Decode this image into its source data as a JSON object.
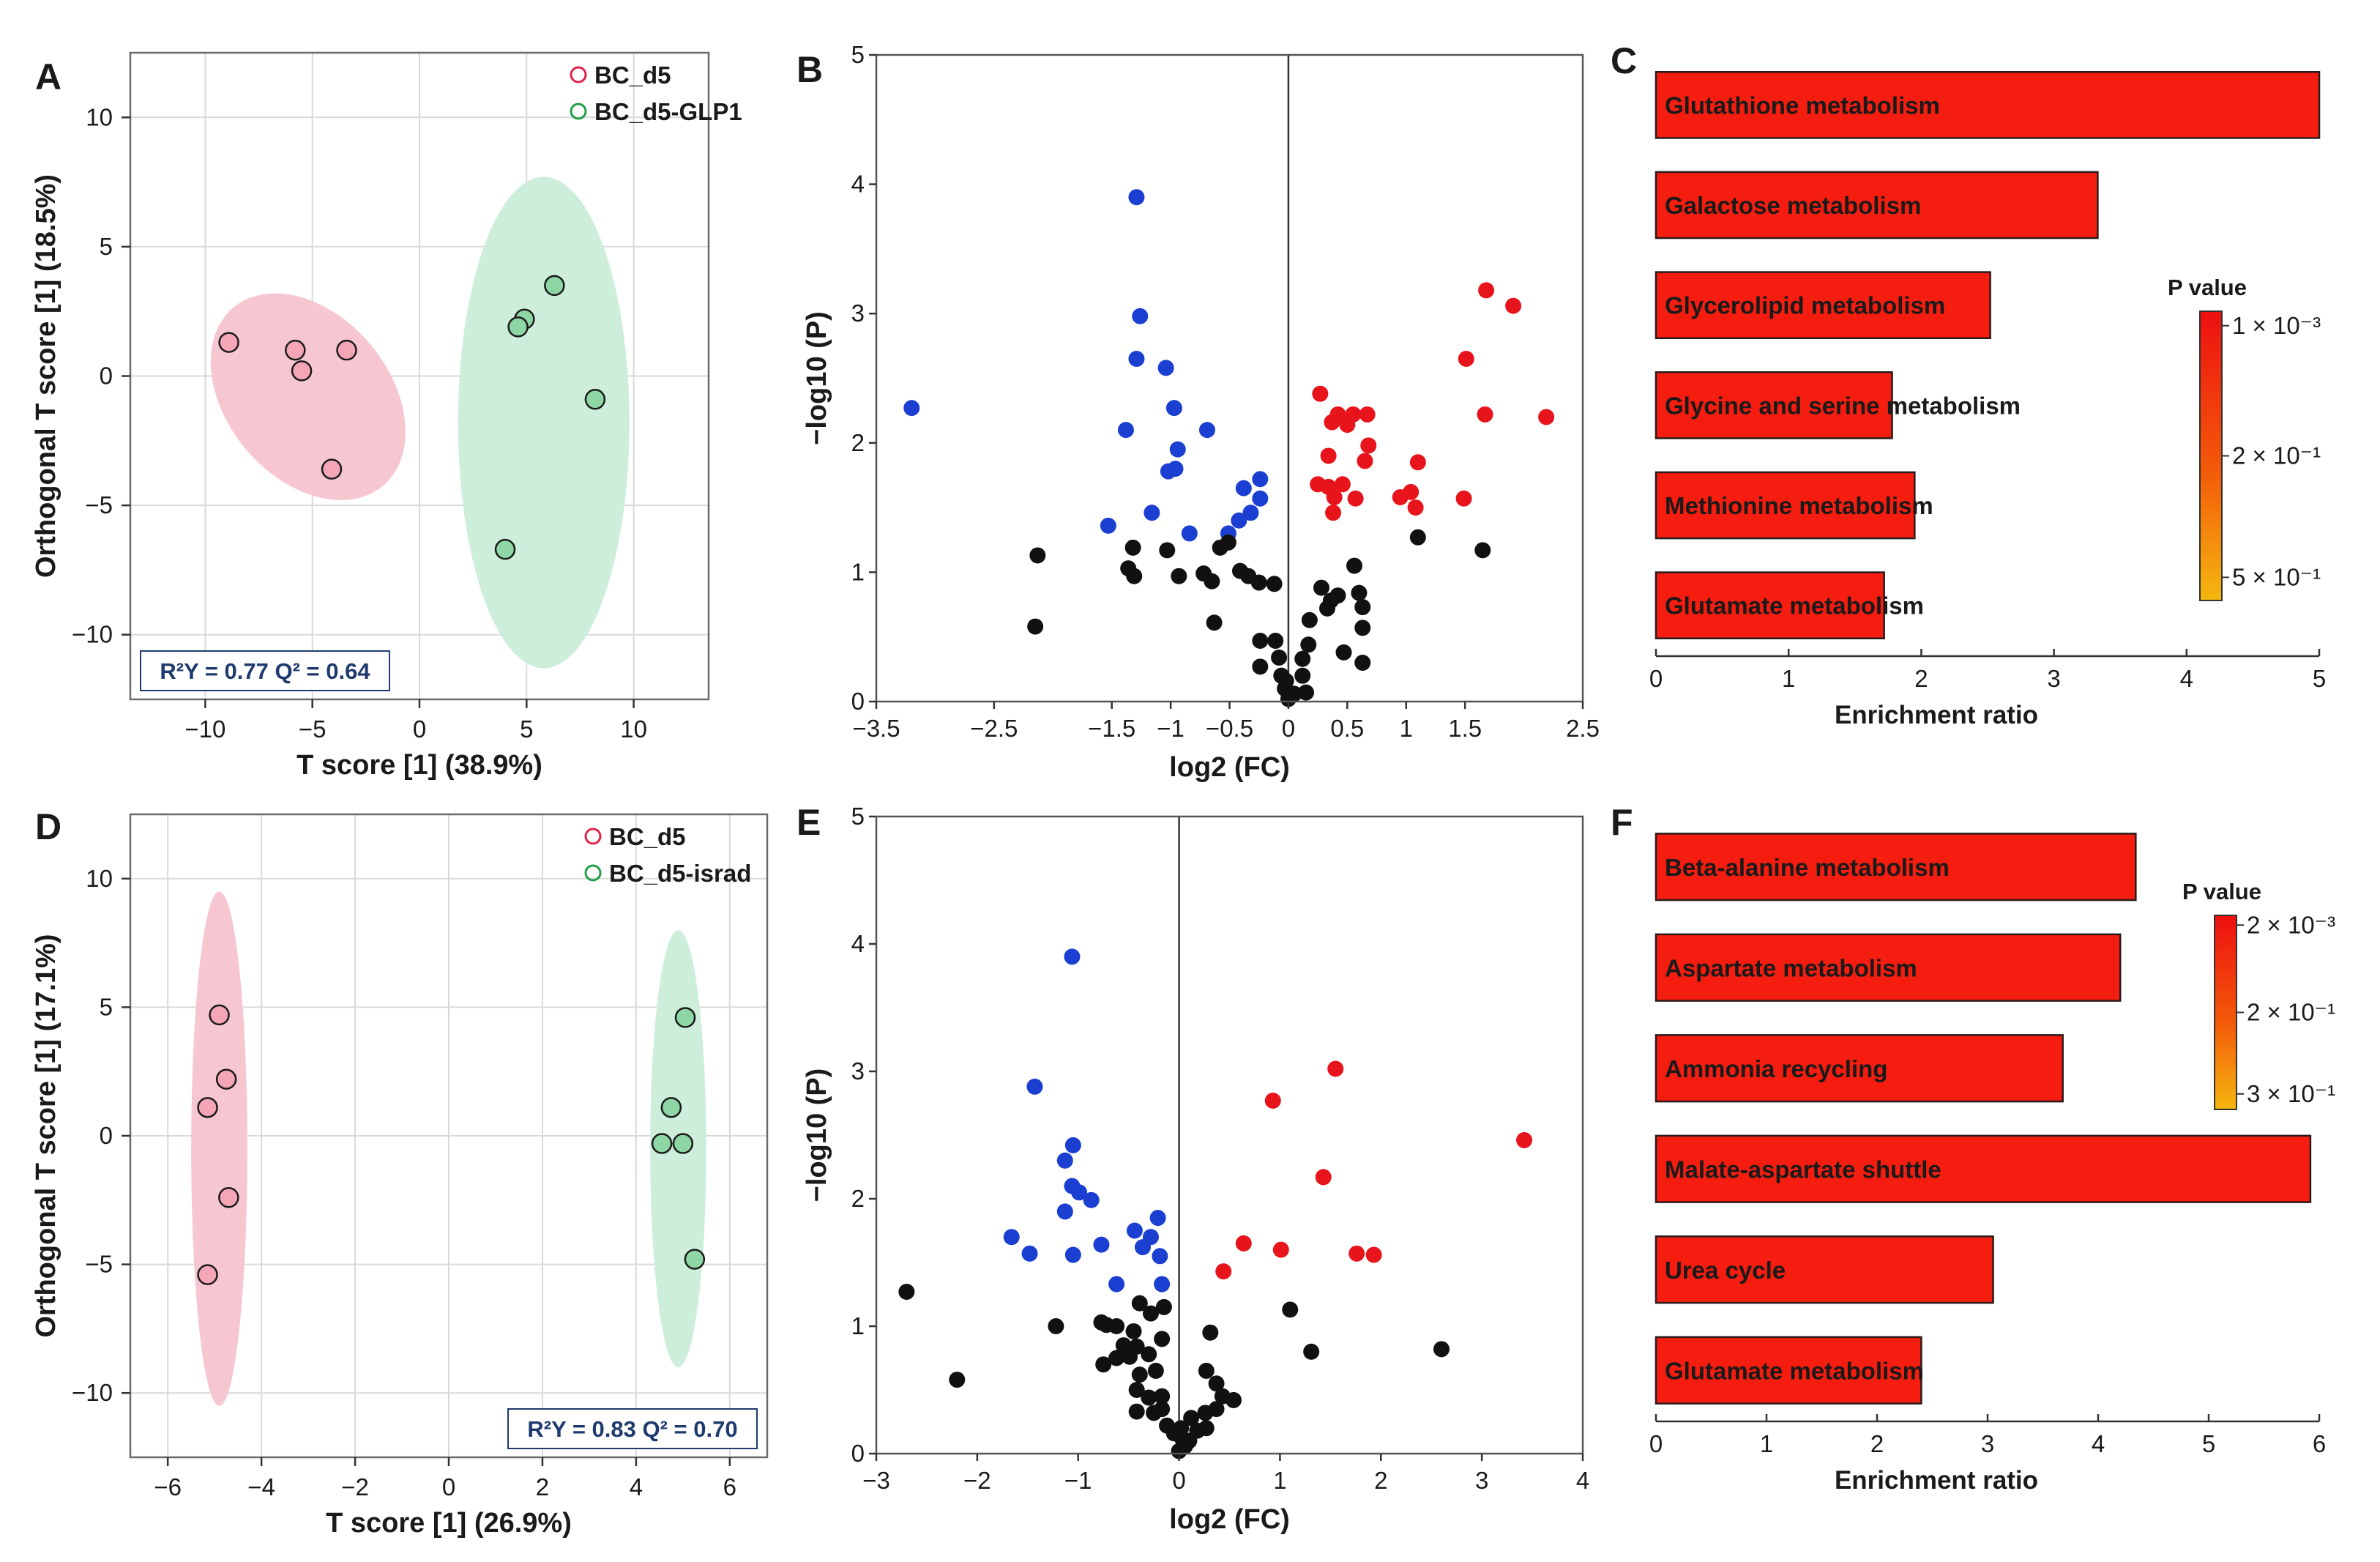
{
  "figure": {
    "panels": [
      {
        "letter": "A"
      },
      {
        "letter": "B"
      },
      {
        "letter": "C"
      },
      {
        "letter": "D"
      },
      {
        "letter": "E"
      },
      {
        "letter": "F"
      }
    ]
  },
  "colors": {
    "group1_fill": "#f4a6b6",
    "group1_ellipse": "#f7c7d1",
    "group1_ring": "#e0234a",
    "group2_fill": "#8fd6a5",
    "group2_ellipse": "#cdeedb",
    "group2_ring": "#1fa048",
    "up": "#e8141c",
    "down": "#1a3fd1",
    "ns": "#111111",
    "bar": "#f51d10",
    "bar_edge": "#2b1a1a",
    "grad_top": "#ee1010",
    "grad_mid": "#f35a0a",
    "grad_bottom": "#f5b70f",
    "stat_text": "#1f3a6e"
  },
  "chart_data": [
    {
      "panel": "A",
      "type": "scatter",
      "xlabel": "T score [1] (38.9%)",
      "ylabel": "Orthogonal T score [1] (18.5%)",
      "xlim": [
        -13.5,
        13.5
      ],
      "ylim": [
        -12.5,
        12.5
      ],
      "xticks": [
        -10,
        -5,
        0,
        5,
        10
      ],
      "yticks": [
        -10,
        -5,
        0,
        5,
        10
      ],
      "grid": true,
      "legend": [
        {
          "name": "BC_d5"
        },
        {
          "name": "BC_d5-GLP1"
        }
      ],
      "stats": "R²Y = 0.77 Q² = 0.64",
      "series": [
        {
          "name": "BC_d5",
          "points": [
            [
              -8.9,
              1.3
            ],
            [
              -5.8,
              1.0
            ],
            [
              -5.5,
              0.2
            ],
            [
              -3.4,
              1.0
            ],
            [
              -4.1,
              -3.6
            ]
          ],
          "ellipse": {
            "cx": -5.2,
            "cy": -0.8,
            "rx": 3.8,
            "ry": 4.5,
            "angle_deg": 40
          }
        },
        {
          "name": "BC_d5-GLP1",
          "points": [
            [
              6.3,
              3.5
            ],
            [
              4.9,
              2.2
            ],
            [
              4.6,
              1.9
            ],
            [
              8.2,
              -0.9
            ],
            [
              4.0,
              -6.7
            ]
          ],
          "ellipse": {
            "cx": 5.8,
            "cy": -1.8,
            "rx": 4.0,
            "ry": 9.5,
            "angle_deg": 0
          }
        }
      ]
    },
    {
      "panel": "B",
      "type": "scatter",
      "subtype": "volcano",
      "xlabel": "log2 (FC)",
      "ylabel": "−log10 (P)",
      "xlim": [
        -3.5,
        2.5
      ],
      "ylim": [
        0,
        5
      ],
      "xticks": [
        -3.5,
        -2.5,
        -1.5,
        -1,
        -0.5,
        0,
        0.5,
        1,
        1.5,
        2.5
      ],
      "xtick_labels": [
        "−3.5",
        "−2.5",
        "−1.5",
        "−1",
        "−0.5",
        "0",
        "0.5",
        "1",
        "1.5",
        "2.5"
      ],
      "yticks": [
        0,
        1,
        2,
        3,
        4,
        5
      ],
      "series": [
        {
          "name": "down",
          "points": [
            [
              -3.2,
              2.27
            ],
            [
              -1.29,
              3.9
            ],
            [
              -1.26,
              2.98
            ],
            [
              -1.29,
              2.65
            ],
            [
              -1.04,
              2.58
            ],
            [
              -0.97,
              2.27
            ],
            [
              -1.38,
              2.1
            ],
            [
              -0.94,
              1.95
            ],
            [
              -0.96,
              1.8
            ],
            [
              -1.02,
              1.78
            ],
            [
              -0.69,
              2.1
            ],
            [
              -0.24,
              1.72
            ],
            [
              -0.24,
              1.57
            ],
            [
              -0.38,
              1.65
            ],
            [
              -0.32,
              1.46
            ],
            [
              -0.42,
              1.4
            ],
            [
              -1.16,
              1.46
            ],
            [
              -1.53,
              1.36
            ],
            [
              -0.51,
              1.3
            ],
            [
              -0.84,
              1.3
            ]
          ]
        },
        {
          "name": "up",
          "points": [
            [
              1.68,
              3.18
            ],
            [
              1.91,
              3.06
            ],
            [
              1.51,
              2.65
            ],
            [
              0.27,
              2.38
            ],
            [
              0.42,
              2.22
            ],
            [
              0.55,
              2.22
            ],
            [
              0.67,
              2.22
            ],
            [
              0.37,
              2.16
            ],
            [
              0.5,
              2.14
            ],
            [
              0.68,
              1.98
            ],
            [
              1.67,
              2.22
            ],
            [
              2.19,
              2.2
            ],
            [
              0.34,
              1.9
            ],
            [
              0.65,
              1.86
            ],
            [
              1.1,
              1.85
            ],
            [
              0.25,
              1.68
            ],
            [
              0.34,
              1.66
            ],
            [
              0.46,
              1.68
            ],
            [
              0.39,
              1.58
            ],
            [
              0.57,
              1.57
            ],
            [
              0.95,
              1.58
            ],
            [
              1.04,
              1.62
            ],
            [
              1.08,
              1.5
            ],
            [
              1.49,
              1.57
            ],
            [
              0.38,
              1.46
            ]
          ]
        },
        {
          "name": "ns",
          "points": [
            [
              -2.13,
              1.13
            ],
            [
              -2.15,
              0.58
            ],
            [
              -1.32,
              1.19
            ],
            [
              -1.36,
              1.03
            ],
            [
              -1.31,
              0.97
            ],
            [
              -1.03,
              1.17
            ],
            [
              -0.93,
              0.97
            ],
            [
              -0.72,
              0.99
            ],
            [
              -0.58,
              1.19
            ],
            [
              -0.51,
              1.23
            ],
            [
              -0.65,
              0.93
            ],
            [
              -0.41,
              1.01
            ],
            [
              -0.34,
              0.97
            ],
            [
              -0.25,
              0.92
            ],
            [
              -0.12,
              0.91
            ],
            [
              -0.63,
              0.61
            ],
            [
              -0.24,
              0.47
            ],
            [
              -0.11,
              0.47
            ],
            [
              -0.08,
              0.34
            ],
            [
              -0.24,
              0.27
            ],
            [
              -0.06,
              0.2
            ],
            [
              -0.02,
              0.16
            ],
            [
              0.05,
              0.06
            ],
            [
              0.0,
              0.02
            ],
            [
              -0.03,
              0.1
            ],
            [
              0.12,
              0.2
            ],
            [
              0.17,
              0.44
            ],
            [
              0.12,
              0.33
            ],
            [
              0.15,
              0.07
            ],
            [
              0.18,
              0.63
            ],
            [
              0.28,
              0.88
            ],
            [
              0.33,
              0.72
            ],
            [
              0.36,
              0.78
            ],
            [
              0.42,
              0.82
            ],
            [
              0.56,
              1.05
            ],
            [
              0.6,
              0.84
            ],
            [
              0.63,
              0.73
            ],
            [
              0.63,
              0.57
            ],
            [
              0.47,
              0.38
            ],
            [
              0.63,
              0.3
            ],
            [
              1.1,
              1.27
            ],
            [
              1.65,
              1.17
            ]
          ]
        }
      ]
    },
    {
      "panel": "C",
      "type": "bar",
      "orientation": "horizontal",
      "xlabel": "Enrichment ratio",
      "xlim": [
        0,
        5
      ],
      "xticks": [
        0,
        1,
        2,
        3,
        4,
        5
      ],
      "categories": [
        "Glutathione metabolism",
        "Galactose metabolism",
        "Glycerolipid metabolism",
        "Glycine and serine metabolism",
        "Methionine metabolism",
        "Glutamate metabolism"
      ],
      "values": [
        5.0,
        3.33,
        2.52,
        1.78,
        1.95,
        1.72
      ],
      "colorbar": {
        "title": "P value",
        "labels": [
          "1 × 10⁻³",
          "2 × 10⁻¹",
          "5 × 10⁻¹"
        ]
      }
    },
    {
      "panel": "D",
      "type": "scatter",
      "xlabel": "T score [1] (26.9%)",
      "ylabel": "Orthogonal T score [1] (17.1%)",
      "xlim": [
        -6.8,
        6.8
      ],
      "ylim": [
        -12.5,
        12.5
      ],
      "xticks": [
        -6,
        -4,
        -2,
        0,
        2,
        4,
        6
      ],
      "yticks": [
        -10,
        -5,
        0,
        5,
        10
      ],
      "grid": true,
      "legend": [
        {
          "name": "BC_d5"
        },
        {
          "name": "BC_d5-israd"
        }
      ],
      "stats": "R²Y = 0.83 Q² = 0.70",
      "series": [
        {
          "name": "BC_d5",
          "points": [
            [
              -4.9,
              4.7
            ],
            [
              -4.75,
              2.2
            ],
            [
              -5.15,
              1.1
            ],
            [
              -4.7,
              -2.4
            ],
            [
              -5.15,
              -5.4
            ]
          ],
          "ellipse": {
            "cx": -4.9,
            "cy": -0.5,
            "rx": 0.6,
            "ry": 10.0,
            "angle_deg": 0
          }
        },
        {
          "name": "BC_d5-israd",
          "points": [
            [
              5.05,
              4.6
            ],
            [
              4.75,
              1.1
            ],
            [
              4.55,
              -0.3
            ],
            [
              5.0,
              -0.3
            ],
            [
              5.25,
              -4.8
            ]
          ],
          "ellipse": {
            "cx": 4.9,
            "cy": -0.5,
            "rx": 0.6,
            "ry": 8.5,
            "angle_deg": 0
          }
        }
      ]
    },
    {
      "panel": "E",
      "type": "scatter",
      "subtype": "volcano",
      "xlabel": "log2 (FC)",
      "ylabel": "−log10 (P)",
      "xlim": [
        -3,
        4
      ],
      "ylim": [
        0,
        5
      ],
      "xticks": [
        -3,
        -2,
        -1,
        0,
        1,
        2,
        3,
        4
      ],
      "xtick_labels": [
        "−3",
        "−2",
        "−1",
        "0",
        "1",
        "2",
        "3",
        "4"
      ],
      "yticks": [
        0,
        1,
        2,
        3,
        4,
        5
      ],
      "series": [
        {
          "name": "down",
          "points": [
            [
              -1.06,
              3.9
            ],
            [
              -1.43,
              2.88
            ],
            [
              -1.05,
              2.42
            ],
            [
              -1.13,
              2.3
            ],
            [
              -1.06,
              2.1
            ],
            [
              -0.99,
              2.05
            ],
            [
              -0.87,
              1.99
            ],
            [
              -1.13,
              1.9
            ],
            [
              -1.66,
              1.7
            ],
            [
              -1.48,
              1.57
            ],
            [
              -0.44,
              1.75
            ],
            [
              -0.21,
              1.85
            ],
            [
              -0.36,
              1.62
            ],
            [
              -0.28,
              1.7
            ],
            [
              -0.77,
              1.64
            ],
            [
              -1.05,
              1.56
            ],
            [
              -0.19,
              1.55
            ],
            [
              -0.62,
              1.33
            ],
            [
              -0.17,
              1.33
            ]
          ]
        },
        {
          "name": "up",
          "points": [
            [
              1.55,
              3.02
            ],
            [
              0.93,
              2.77
            ],
            [
              1.43,
              2.17
            ],
            [
              3.42,
              2.46
            ],
            [
              0.64,
              1.65
            ],
            [
              1.01,
              1.6
            ],
            [
              1.76,
              1.57
            ],
            [
              1.93,
              1.56
            ],
            [
              0.44,
              1.43
            ]
          ]
        },
        {
          "name": "ns",
          "points": [
            [
              -2.7,
              1.27
            ],
            [
              -2.2,
              0.58
            ],
            [
              -1.22,
              1.0
            ],
            [
              -0.77,
              1.03
            ],
            [
              -0.72,
              1.01
            ],
            [
              -0.62,
              1.0
            ],
            [
              -0.45,
              0.96
            ],
            [
              -0.39,
              1.18
            ],
            [
              -0.28,
              1.1
            ],
            [
              -0.15,
              1.15
            ],
            [
              -0.55,
              0.85
            ],
            [
              -0.42,
              0.84
            ],
            [
              -0.49,
              0.76
            ],
            [
              -0.3,
              0.78
            ],
            [
              -0.17,
              0.9
            ],
            [
              -0.62,
              0.75
            ],
            [
              -0.75,
              0.7
            ],
            [
              -0.39,
              0.62
            ],
            [
              -0.42,
              0.5
            ],
            [
              -0.23,
              0.65
            ],
            [
              -0.3,
              0.44
            ],
            [
              -0.17,
              0.45
            ],
            [
              -0.42,
              0.33
            ],
            [
              -0.25,
              0.32
            ],
            [
              -0.17,
              0.35
            ],
            [
              -0.12,
              0.22
            ],
            [
              -0.05,
              0.16
            ],
            [
              0.03,
              0.12
            ],
            [
              0.1,
              0.1
            ],
            [
              0.06,
              0.06
            ],
            [
              0.0,
              0.02
            ],
            [
              0.02,
              0.2
            ],
            [
              0.12,
              0.28
            ],
            [
              0.18,
              0.18
            ],
            [
              0.27,
              0.2
            ],
            [
              0.26,
              0.32
            ],
            [
              0.37,
              0.55
            ],
            [
              0.27,
              0.65
            ],
            [
              0.43,
              0.45
            ],
            [
              0.37,
              0.35
            ],
            [
              0.54,
              0.42
            ],
            [
              0.31,
              0.95
            ],
            [
              1.1,
              1.13
            ],
            [
              1.31,
              0.8
            ],
            [
              2.6,
              0.82
            ]
          ]
        }
      ]
    },
    {
      "panel": "F",
      "type": "bar",
      "orientation": "horizontal",
      "xlabel": "Enrichment ratio",
      "xlim": [
        0,
        6
      ],
      "xticks": [
        0,
        1,
        2,
        3,
        4,
        5,
        6
      ],
      "categories": [
        "Beta-alanine metabolism",
        "Aspartate metabolism",
        "Ammonia recycling",
        "Malate-aspartate shuttle",
        "Urea cycle",
        "Glutamate metabolism"
      ],
      "values": [
        4.34,
        4.2,
        3.68,
        5.92,
        3.05,
        2.4
      ],
      "colorbar": {
        "title": "P value",
        "labels": [
          "2 × 10⁻³",
          "2 × 10⁻¹",
          "3 × 10⁻¹"
        ]
      }
    }
  ]
}
